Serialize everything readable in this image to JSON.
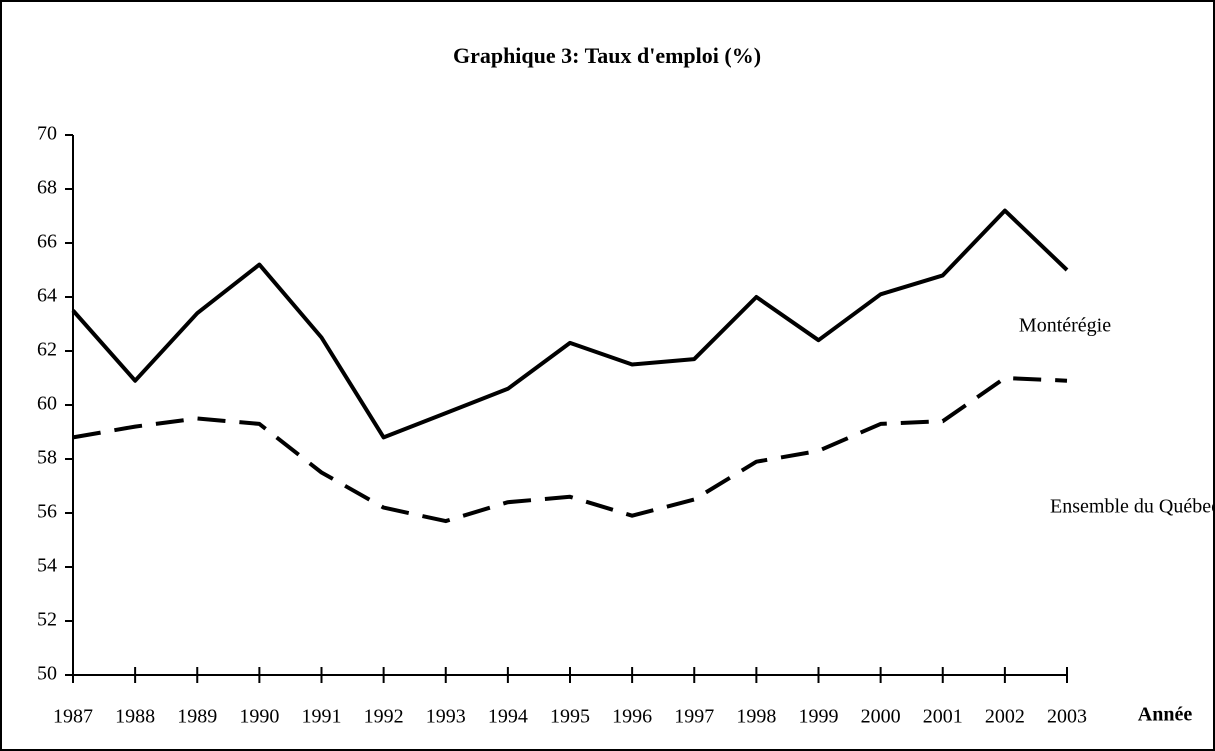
{
  "chart_data": {
    "type": "line",
    "title": "Graphique 3: Taux d'emploi (%)",
    "x_label": "Année",
    "x": [
      1987,
      1988,
      1989,
      1990,
      1991,
      1992,
      1993,
      1994,
      1995,
      1996,
      1997,
      1998,
      1999,
      2000,
      2001,
      2002,
      2003
    ],
    "xlim": [
      1987,
      2003
    ],
    "xticks": [
      1987,
      1988,
      1989,
      1990,
      1991,
      1992,
      1993,
      1994,
      1995,
      1996,
      1997,
      1998,
      1999,
      2000,
      2001,
      2002,
      2003
    ],
    "ylim": [
      50,
      70
    ],
    "yticks": [
      50,
      52,
      54,
      56,
      58,
      60,
      62,
      64,
      66,
      68,
      70
    ],
    "series": [
      {
        "name": "Montérégie",
        "color": "#000000",
        "style": "solid",
        "values": [
          63.5,
          60.9,
          63.4,
          65.2,
          62.5,
          58.8,
          59.7,
          60.6,
          62.3,
          61.5,
          61.7,
          64.0,
          62.4,
          64.1,
          64.8,
          67.2,
          65.0
        ]
      },
      {
        "name": "Ensemble du Québec",
        "color": "#000000",
        "style": "dashed",
        "values": [
          58.8,
          59.2,
          59.5,
          59.3,
          57.5,
          56.2,
          55.7,
          56.4,
          56.6,
          55.9,
          56.5,
          57.9,
          58.3,
          59.3,
          59.4,
          61.0,
          60.9
        ]
      }
    ]
  }
}
